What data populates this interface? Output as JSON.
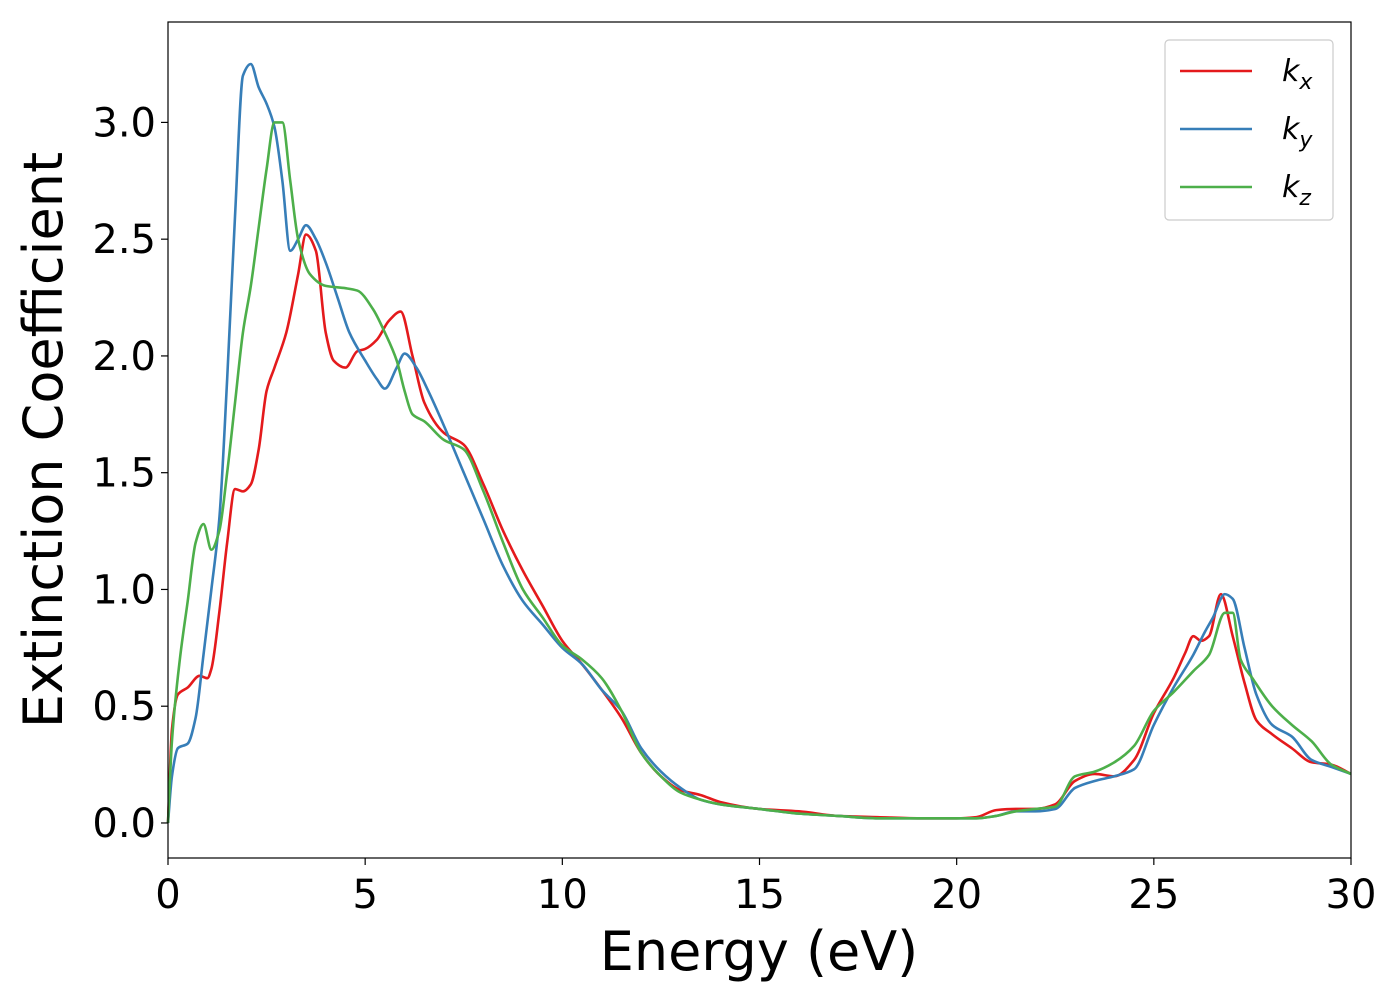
{
  "chart_data": {
    "type": "line",
    "xlabel": "Energy (eV)",
    "ylabel": "Extinction Coefficient",
    "xlim": [
      0,
      30
    ],
    "ylim": [
      -0.15,
      3.43
    ],
    "xticks": [
      "0",
      "5",
      "10",
      "15",
      "20",
      "25",
      "30"
    ],
    "yticks": [
      "0.0",
      "0.5",
      "1.0",
      "1.5",
      "2.0",
      "2.5",
      "3.0"
    ],
    "grid": false,
    "legend_position": "top-right",
    "series": [
      {
        "name": "k",
        "subscript": "x",
        "color": "#e41a1c",
        "x": [
          0,
          0.1,
          0.25,
          0.5,
          0.8,
          1.0,
          1.1,
          1.3,
          1.5,
          1.7,
          1.9,
          2.1,
          2.3,
          2.5,
          2.7,
          3.0,
          3.3,
          3.5,
          3.75,
          4.0,
          4.2,
          4.5,
          4.8,
          5.0,
          5.3,
          5.6,
          5.9,
          6.2,
          6.5,
          7.0,
          7.5,
          8.0,
          8.5,
          9.0,
          9.5,
          10.0,
          10.5,
          11.0,
          11.5,
          12.0,
          12.5,
          13.0,
          13.5,
          14.0,
          15.0,
          16.0,
          17.0,
          18.0,
          19.0,
          20.0,
          20.5,
          21.0,
          21.5,
          22.0,
          22.5,
          23.0,
          23.5,
          24.0,
          24.5,
          25.0,
          25.5,
          25.8,
          26.0,
          26.2,
          26.4,
          26.7,
          27.0,
          27.3,
          27.6,
          28.0,
          28.5,
          29.0,
          29.5,
          30.0
        ],
        "values": [
          0.0,
          0.4,
          0.55,
          0.58,
          0.63,
          0.62,
          0.66,
          0.9,
          1.2,
          1.43,
          1.42,
          1.45,
          1.6,
          1.85,
          1.95,
          2.1,
          2.35,
          2.52,
          2.45,
          2.1,
          1.98,
          1.95,
          2.02,
          2.03,
          2.07,
          2.15,
          2.19,
          2.0,
          1.8,
          1.67,
          1.62,
          1.45,
          1.25,
          1.08,
          0.93,
          0.78,
          0.68,
          0.57,
          0.45,
          0.3,
          0.2,
          0.14,
          0.12,
          0.09,
          0.06,
          0.05,
          0.03,
          0.025,
          0.02,
          0.02,
          0.025,
          0.055,
          0.06,
          0.06,
          0.08,
          0.18,
          0.21,
          0.2,
          0.27,
          0.47,
          0.62,
          0.73,
          0.8,
          0.78,
          0.8,
          0.98,
          0.8,
          0.6,
          0.44,
          0.38,
          0.32,
          0.26,
          0.25,
          0.21
        ]
      },
      {
        "name": "k",
        "subscript": "y",
        "color": "#377eb8",
        "x": [
          0,
          0.1,
          0.25,
          0.5,
          0.7,
          0.9,
          1.1,
          1.3,
          1.5,
          1.7,
          1.9,
          2.1,
          2.3,
          2.5,
          2.7,
          2.9,
          3.1,
          3.3,
          3.5,
          3.75,
          4.0,
          4.3,
          4.6,
          5.0,
          5.3,
          5.5,
          5.8,
          6.0,
          6.3,
          6.6,
          7.0,
          7.5,
          8.0,
          8.5,
          9.0,
          9.5,
          10.0,
          10.5,
          11.0,
          11.5,
          12.0,
          12.5,
          13.0,
          13.5,
          14.0,
          15.0,
          16.0,
          17.0,
          18.0,
          19.0,
          20.0,
          20.5,
          21.0,
          21.5,
          22.0,
          22.5,
          23.0,
          23.5,
          24.0,
          24.5,
          25.0,
          25.5,
          26.0,
          26.3,
          26.5,
          26.8,
          27.0,
          27.3,
          27.6,
          28.0,
          28.5,
          29.0,
          29.5,
          30.0
        ],
        "values": [
          0.0,
          0.2,
          0.32,
          0.34,
          0.45,
          0.72,
          1.0,
          1.3,
          1.9,
          2.6,
          3.2,
          3.25,
          3.15,
          3.08,
          2.98,
          2.75,
          2.45,
          2.5,
          2.56,
          2.5,
          2.4,
          2.25,
          2.1,
          1.98,
          1.9,
          1.86,
          1.95,
          2.01,
          1.95,
          1.85,
          1.7,
          1.5,
          1.3,
          1.1,
          0.95,
          0.85,
          0.75,
          0.68,
          0.57,
          0.48,
          0.32,
          0.22,
          0.15,
          0.1,
          0.08,
          0.06,
          0.04,
          0.03,
          0.02,
          0.02,
          0.02,
          0.02,
          0.03,
          0.05,
          0.05,
          0.06,
          0.15,
          0.18,
          0.2,
          0.23,
          0.42,
          0.58,
          0.72,
          0.82,
          0.88,
          0.98,
          0.96,
          0.75,
          0.55,
          0.42,
          0.37,
          0.27,
          0.24,
          0.21
        ]
      },
      {
        "name": "k",
        "subscript": "z",
        "color": "#4daf4a",
        "x": [
          0,
          0.1,
          0.3,
          0.5,
          0.7,
          0.9,
          1.1,
          1.3,
          1.5,
          1.7,
          1.9,
          2.1,
          2.3,
          2.5,
          2.7,
          2.9,
          3.1,
          3.3,
          3.6,
          4.0,
          4.5,
          4.8,
          5.2,
          5.5,
          5.8,
          6.0,
          6.2,
          6.5,
          7.0,
          7.5,
          8.0,
          8.5,
          9.0,
          9.5,
          10.0,
          10.5,
          11.0,
          11.5,
          12.0,
          12.5,
          13.0,
          13.5,
          14.0,
          15.0,
          16.0,
          17.0,
          18.0,
          19.0,
          20.0,
          20.5,
          21.0,
          21.5,
          22.0,
          22.5,
          23.0,
          23.5,
          24.0,
          24.5,
          25.0,
          25.5,
          26.0,
          26.4,
          26.8,
          27.0,
          27.2,
          27.5,
          28.0,
          28.5,
          29.0,
          29.5,
          30.0
        ],
        "values": [
          0.0,
          0.35,
          0.7,
          0.95,
          1.2,
          1.28,
          1.17,
          1.25,
          1.5,
          1.8,
          2.1,
          2.3,
          2.55,
          2.8,
          3.0,
          3.0,
          2.75,
          2.5,
          2.35,
          2.3,
          2.29,
          2.28,
          2.2,
          2.1,
          1.98,
          1.85,
          1.75,
          1.72,
          1.64,
          1.6,
          1.42,
          1.2,
          1.0,
          0.88,
          0.76,
          0.7,
          0.62,
          0.48,
          0.3,
          0.2,
          0.13,
          0.1,
          0.08,
          0.06,
          0.04,
          0.03,
          0.02,
          0.02,
          0.02,
          0.02,
          0.03,
          0.05,
          0.06,
          0.07,
          0.2,
          0.22,
          0.26,
          0.33,
          0.48,
          0.56,
          0.65,
          0.72,
          0.9,
          0.9,
          0.7,
          0.62,
          0.5,
          0.42,
          0.35,
          0.25,
          0.21
        ]
      }
    ]
  }
}
